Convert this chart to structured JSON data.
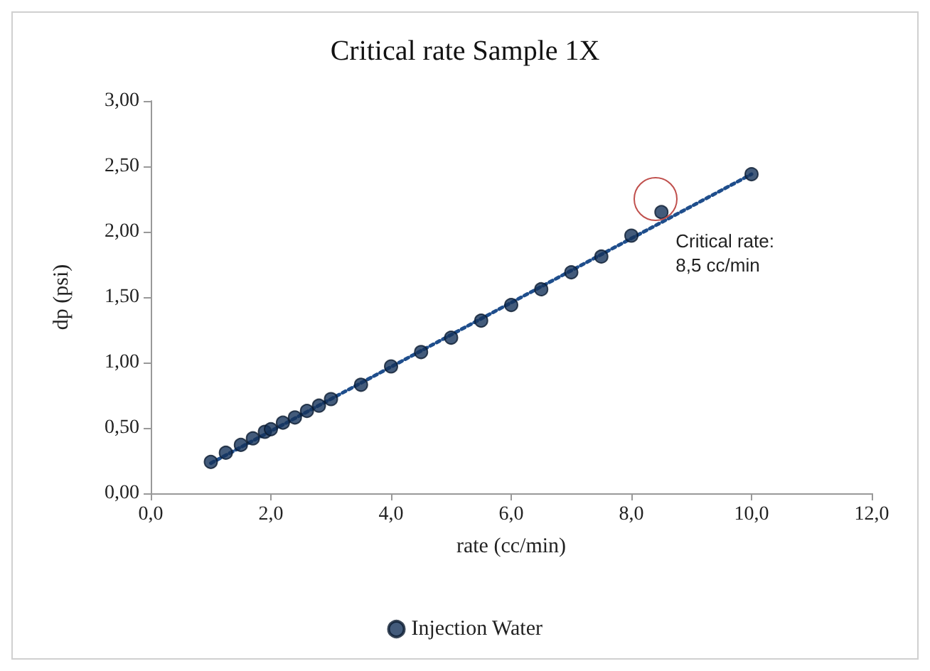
{
  "chart_data": {
    "type": "scatter",
    "title": "Critical rate Sample 1X",
    "xlabel": "rate (cc/min)",
    "ylabel": "dp (psi)",
    "x": [
      1.0,
      1.25,
      1.5,
      1.7,
      1.9,
      2.0,
      2.2,
      2.4,
      2.6,
      2.8,
      3.0,
      3.5,
      4.0,
      4.5,
      5.0,
      5.5,
      6.0,
      6.5,
      7.0,
      7.5,
      8.0,
      8.5,
      10.0
    ],
    "series": [
      {
        "name": "Injection Water",
        "color": "#14325a",
        "values": [
          0.24,
          0.31,
          0.37,
          0.42,
          0.47,
          0.49,
          0.54,
          0.58,
          0.63,
          0.67,
          0.72,
          0.83,
          0.97,
          1.08,
          1.19,
          1.32,
          1.44,
          1.56,
          1.69,
          1.81,
          1.97,
          2.15,
          2.44
        ]
      },
      {
        "type": "line",
        "color": "#1f4e8c",
        "line_style": "dotted",
        "marker": "none",
        "x": [
          1.0,
          10.0
        ],
        "values": [
          0.23,
          2.44
        ]
      }
    ],
    "xlim": [
      0,
      12
    ],
    "xticks": [
      {
        "value": 0,
        "label": "0,0"
      },
      {
        "value": 2,
        "label": "2,0"
      },
      {
        "value": 4,
        "label": "4,0"
      },
      {
        "value": 6,
        "label": "6,0"
      },
      {
        "value": 8,
        "label": "8,0"
      },
      {
        "value": 10,
        "label": "10,0"
      },
      {
        "value": 12,
        "label": "12,0"
      }
    ],
    "ylim": [
      0,
      3
    ],
    "yticks": [
      {
        "value": 0,
        "label": "0,00"
      },
      {
        "value": 0.5,
        "label": "0,50"
      },
      {
        "value": 1,
        "label": "1,00"
      },
      {
        "value": 1.5,
        "label": "1,50"
      },
      {
        "value": 2,
        "label": "2,00"
      },
      {
        "value": 2.5,
        "label": "2,50"
      },
      {
        "value": 3,
        "label": "3,00"
      }
    ],
    "annotations": [
      {
        "text": "Critical rate:\n8,5 cc/min",
        "x": 8.5,
        "y": 2.15
      }
    ],
    "grid": false,
    "legend": "bottom",
    "marker": "circle"
  }
}
